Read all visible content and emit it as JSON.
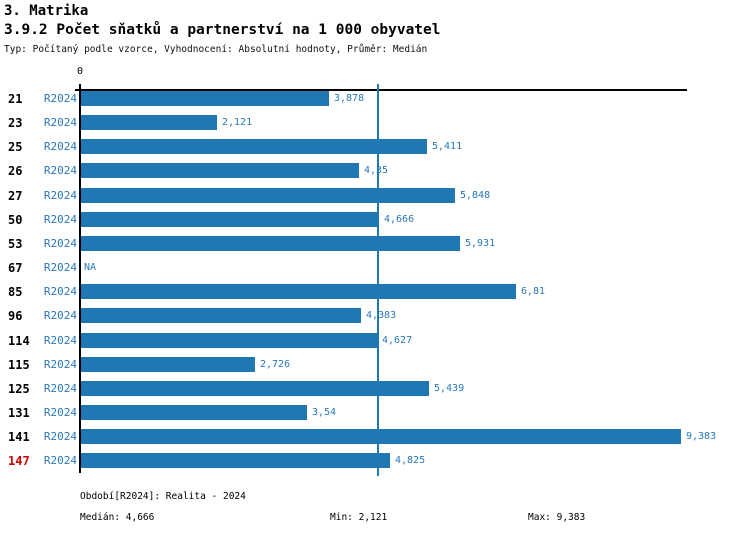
{
  "header": {
    "title": "3. Matrika",
    "subtitle": "3.9.2 Počet sňatků a partnerství na 1 000 obyvatel",
    "meta": "Typ: Počítaný podle vzorce, Vyhodnocení: Absolutní hodnoty, Průměr: Medián"
  },
  "chart_data": {
    "type": "bar",
    "orientation": "horizontal",
    "series_label": "R2024",
    "categories": [
      "21",
      "23",
      "25",
      "26",
      "27",
      "50",
      "53",
      "67",
      "85",
      "96",
      "114",
      "115",
      "125",
      "131",
      "141",
      "147"
    ],
    "values": [
      3.878,
      2.121,
      5.411,
      4.35,
      5.848,
      4.666,
      5.931,
      null,
      6.81,
      4.383,
      4.627,
      2.726,
      5.439,
      3.54,
      9.383,
      4.825
    ],
    "value_labels": [
      "3,878",
      "2,121",
      "5,411",
      "4,35",
      "5,848",
      "4,666",
      "5,931",
      "NA",
      "6,81",
      "4,383",
      "4,627",
      "2,726",
      "5,439",
      "3,54",
      "9,383",
      "4,825"
    ],
    "na_label": "NA",
    "zero_tick_label": "0",
    "xlim": [
      0,
      9.6
    ],
    "median": 4.666,
    "highlight_category": "147",
    "grid": false,
    "legend": "none",
    "bar_color": "#1f77b4",
    "text_color": "#2878b9",
    "highlight_color": "#cc0000",
    "median_line_color": "#1f77b4",
    "axis_color": "#000000"
  },
  "footer": {
    "period": "Období[R2024]: Realita - 2024",
    "median": "Medián: 4,666",
    "min": "Min: 2,121",
    "max": "Max: 9,383"
  }
}
